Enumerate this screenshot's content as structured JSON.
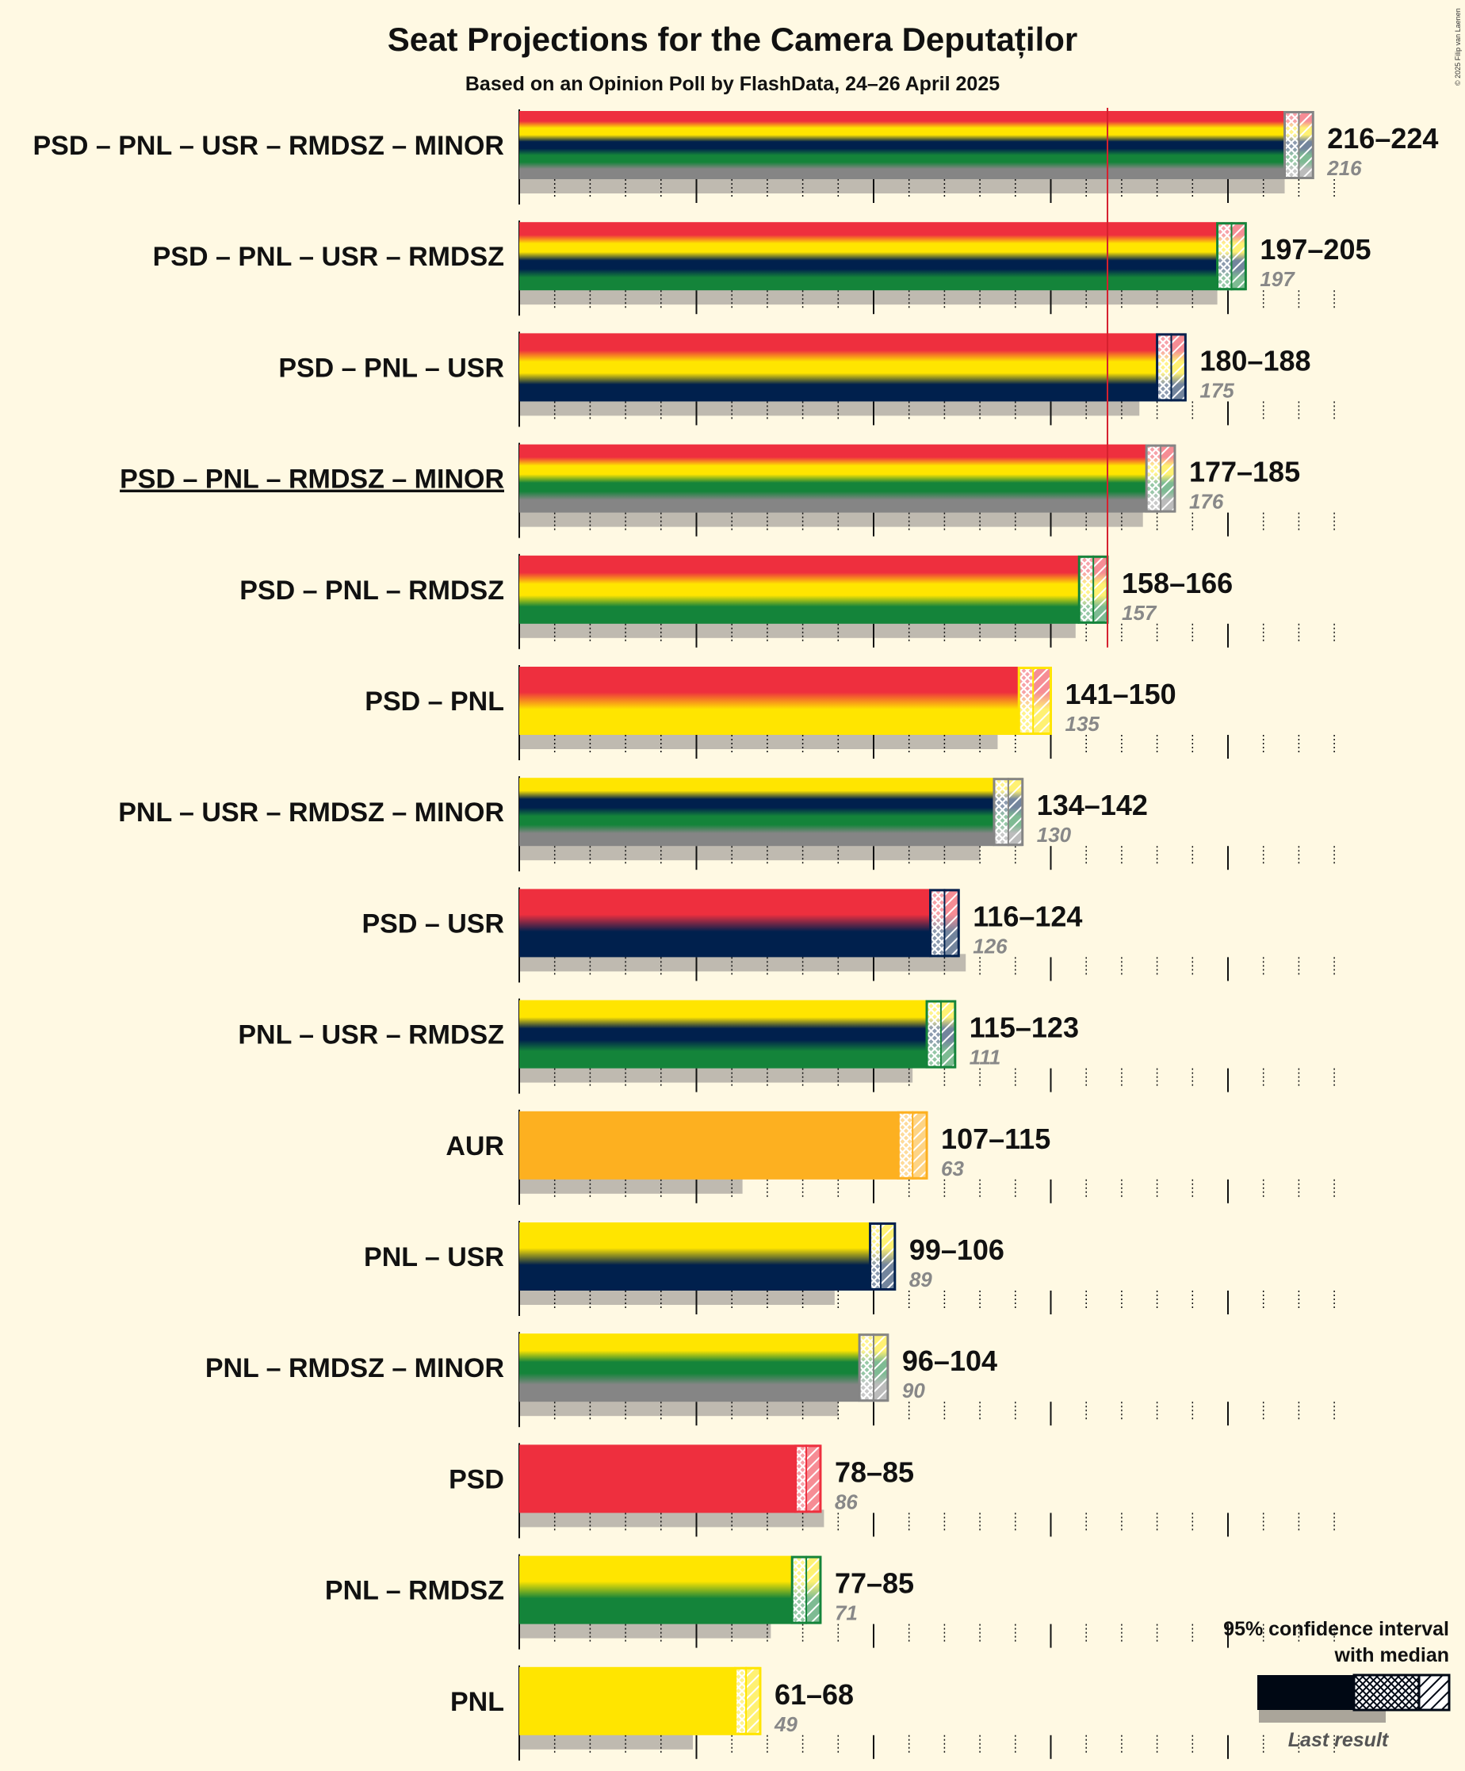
{
  "chart_data": {
    "type": "bar",
    "title": "Seat Projections for the Camera Deputaților",
    "subtitle": "Based on an Opinion Poll by FlashData, 24–26 April 2025",
    "copyright": "© 2025 Filip van Laenen",
    "majority": 166,
    "xlim": [
      0,
      236
    ],
    "categories": [
      "PSD – PNL – USR – RMDSZ – MINOR",
      "PSD – PNL – USR – RMDSZ",
      "PSD – PNL – USR",
      "PSD – PNL – RMDSZ – MINOR",
      "PSD – PNL – RMDSZ",
      "PSD – PNL",
      "PNL – USR – RMDSZ – MINOR",
      "PSD – USR",
      "PNL – USR – RMDSZ",
      "AUR",
      "PNL – USR",
      "PNL – RMDSZ – MINOR",
      "PSD",
      "PNL – RMDSZ",
      "PNL"
    ],
    "series": [
      {
        "name": "95% confidence interval low",
        "values": [
          216,
          197,
          180,
          177,
          158,
          141,
          134,
          116,
          115,
          107,
          99,
          96,
          78,
          77,
          61
        ]
      },
      {
        "name": "median",
        "values": [
          220,
          201,
          184,
          181,
          162,
          145,
          138,
          120,
          119,
          111,
          102,
          100,
          81,
          81,
          64
        ]
      },
      {
        "name": "95% confidence interval high",
        "values": [
          224,
          205,
          188,
          185,
          166,
          150,
          142,
          124,
          123,
          115,
          106,
          104,
          85,
          85,
          68
        ]
      },
      {
        "name": "Last result",
        "values": [
          216,
          197,
          175,
          176,
          157,
          135,
          130,
          126,
          111,
          63,
          89,
          90,
          86,
          71,
          49
        ]
      }
    ],
    "range_labels": [
      "216–224",
      "197–205",
      "180–188",
      "177–185",
      "158–166",
      "141–150",
      "134–142",
      "116–124",
      "115–123",
      "107–115",
      "99–106",
      "96–104",
      "78–85",
      "77–85",
      "61–68"
    ],
    "last_labels": [
      "216",
      "197",
      "175",
      "176",
      "157",
      "135",
      "130",
      "126",
      "111",
      "63",
      "89",
      "90",
      "86",
      "71",
      "49"
    ],
    "coalition_parties": [
      [
        "PSD",
        "PNL",
        "USR",
        "RMDSZ",
        "MINOR"
      ],
      [
        "PSD",
        "PNL",
        "USR",
        "RMDSZ"
      ],
      [
        "PSD",
        "PNL",
        "USR"
      ],
      [
        "PSD",
        "PNL",
        "RMDSZ",
        "MINOR"
      ],
      [
        "PSD",
        "PNL",
        "RMDSZ"
      ],
      [
        "PSD",
        "PNL"
      ],
      [
        "PNL",
        "USR",
        "RMDSZ",
        "MINOR"
      ],
      [
        "PSD",
        "USR"
      ],
      [
        "PNL",
        "USR",
        "RMDSZ"
      ],
      [
        "AUR"
      ],
      [
        "PNL",
        "USR"
      ],
      [
        "PNL",
        "RMDSZ",
        "MINOR"
      ],
      [
        "PSD"
      ],
      [
        "PNL",
        "RMDSZ"
      ],
      [
        "PNL"
      ]
    ],
    "underlined_category": "PSD – PNL – RMDSZ – MINOR",
    "party_colors": {
      "PSD": "#ee2f3e",
      "PNL": "#ffe500",
      "USR": "#00204d",
      "RMDSZ": "#14843a",
      "MINOR": "#858585",
      "AUR": "#fdb020"
    },
    "legend": {
      "title_line1": "95% confidence interval",
      "title_line2": "with median",
      "last_result": "Last result"
    }
  }
}
